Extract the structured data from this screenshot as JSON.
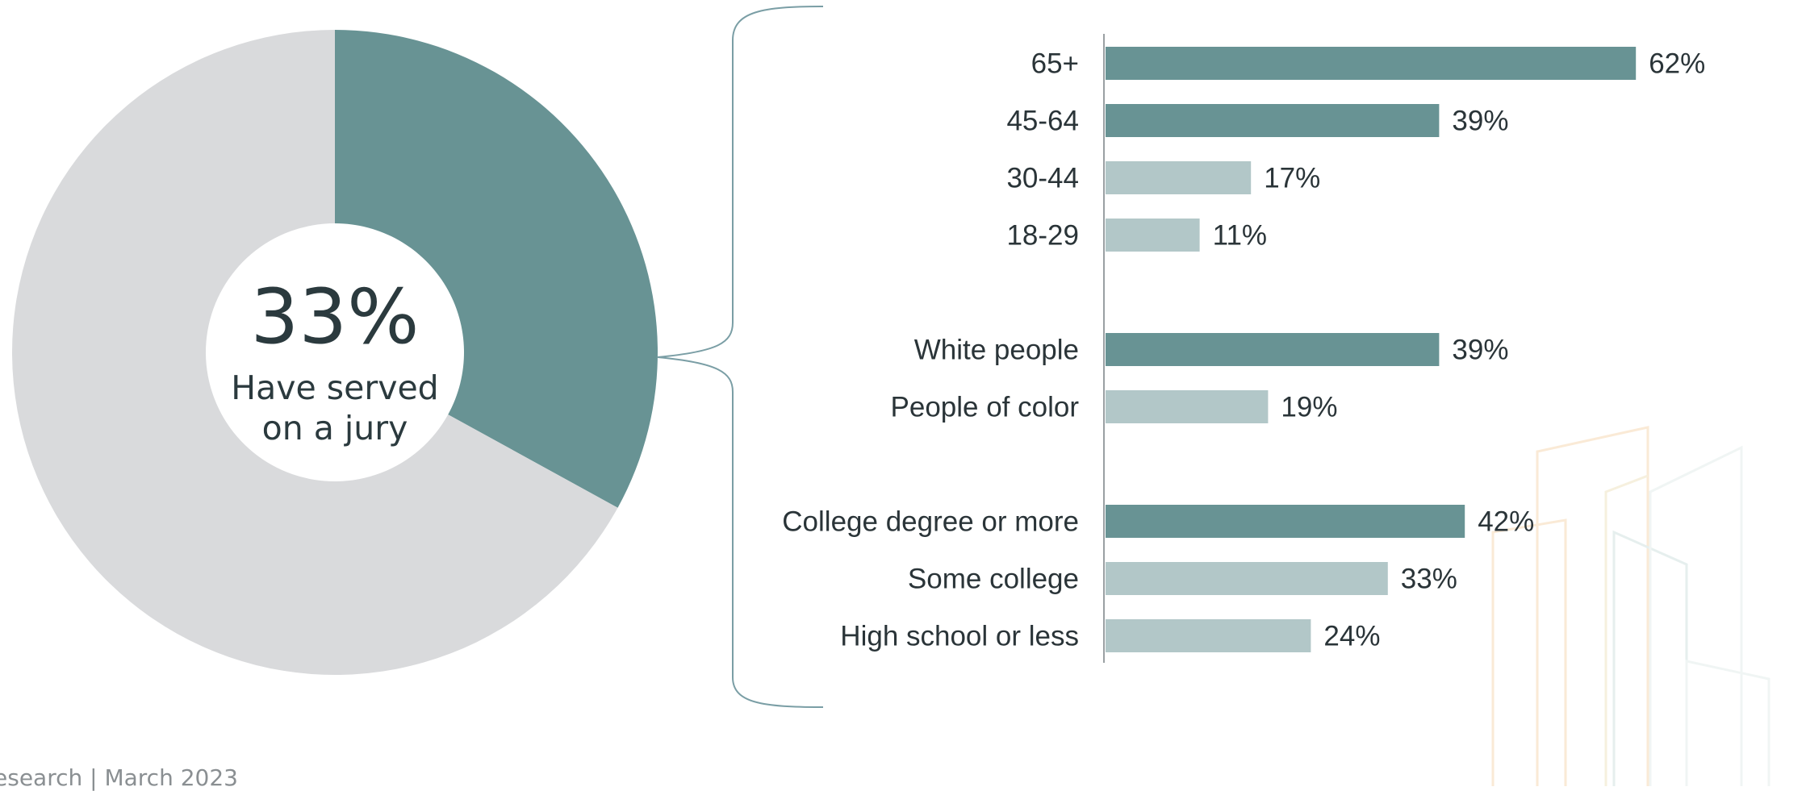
{
  "chart_data": [
    {
      "type": "pie",
      "style": "donut",
      "slices": [
        {
          "label": "Have served on a jury",
          "value": 33
        },
        {
          "label": "",
          "value": 67
        }
      ],
      "center_value": "33%",
      "center_text_line1": "Have served",
      "center_text_line2": "on a jury"
    },
    {
      "type": "bar",
      "orientation": "horizontal",
      "unit": "%",
      "groups": [
        {
          "items": [
            {
              "category": "65+",
              "value": 62,
              "label": "62%",
              "highlight": true
            },
            {
              "category": "45-64",
              "value": 39,
              "label": "39%",
              "highlight": true
            },
            {
              "category": "30-44",
              "value": 17,
              "label": "17%",
              "highlight": false
            },
            {
              "category": "18-29",
              "value": 11,
              "label": "11%",
              "highlight": false
            }
          ]
        },
        {
          "items": [
            {
              "category": "White people",
              "value": 39,
              "label": "39%",
              "highlight": true
            },
            {
              "category": "People of color",
              "value": 19,
              "label": "19%",
              "highlight": false
            }
          ]
        },
        {
          "items": [
            {
              "category": "College degree or more",
              "value": 42,
              "label": "42%",
              "highlight": true
            },
            {
              "category": "Some college",
              "value": 33,
              "label": "33%",
              "highlight": false
            },
            {
              "category": "High school or less",
              "value": 24,
              "label": "24%",
              "highlight": false
            }
          ]
        }
      ]
    }
  ],
  "colors": {
    "primary": "#689394",
    "secondary": "#b2c7c8",
    "remainder": "#d9dadc",
    "text": "#2a3438",
    "bracket": "#7a9ea5"
  },
  "footer_text": "esearch | March 2023"
}
